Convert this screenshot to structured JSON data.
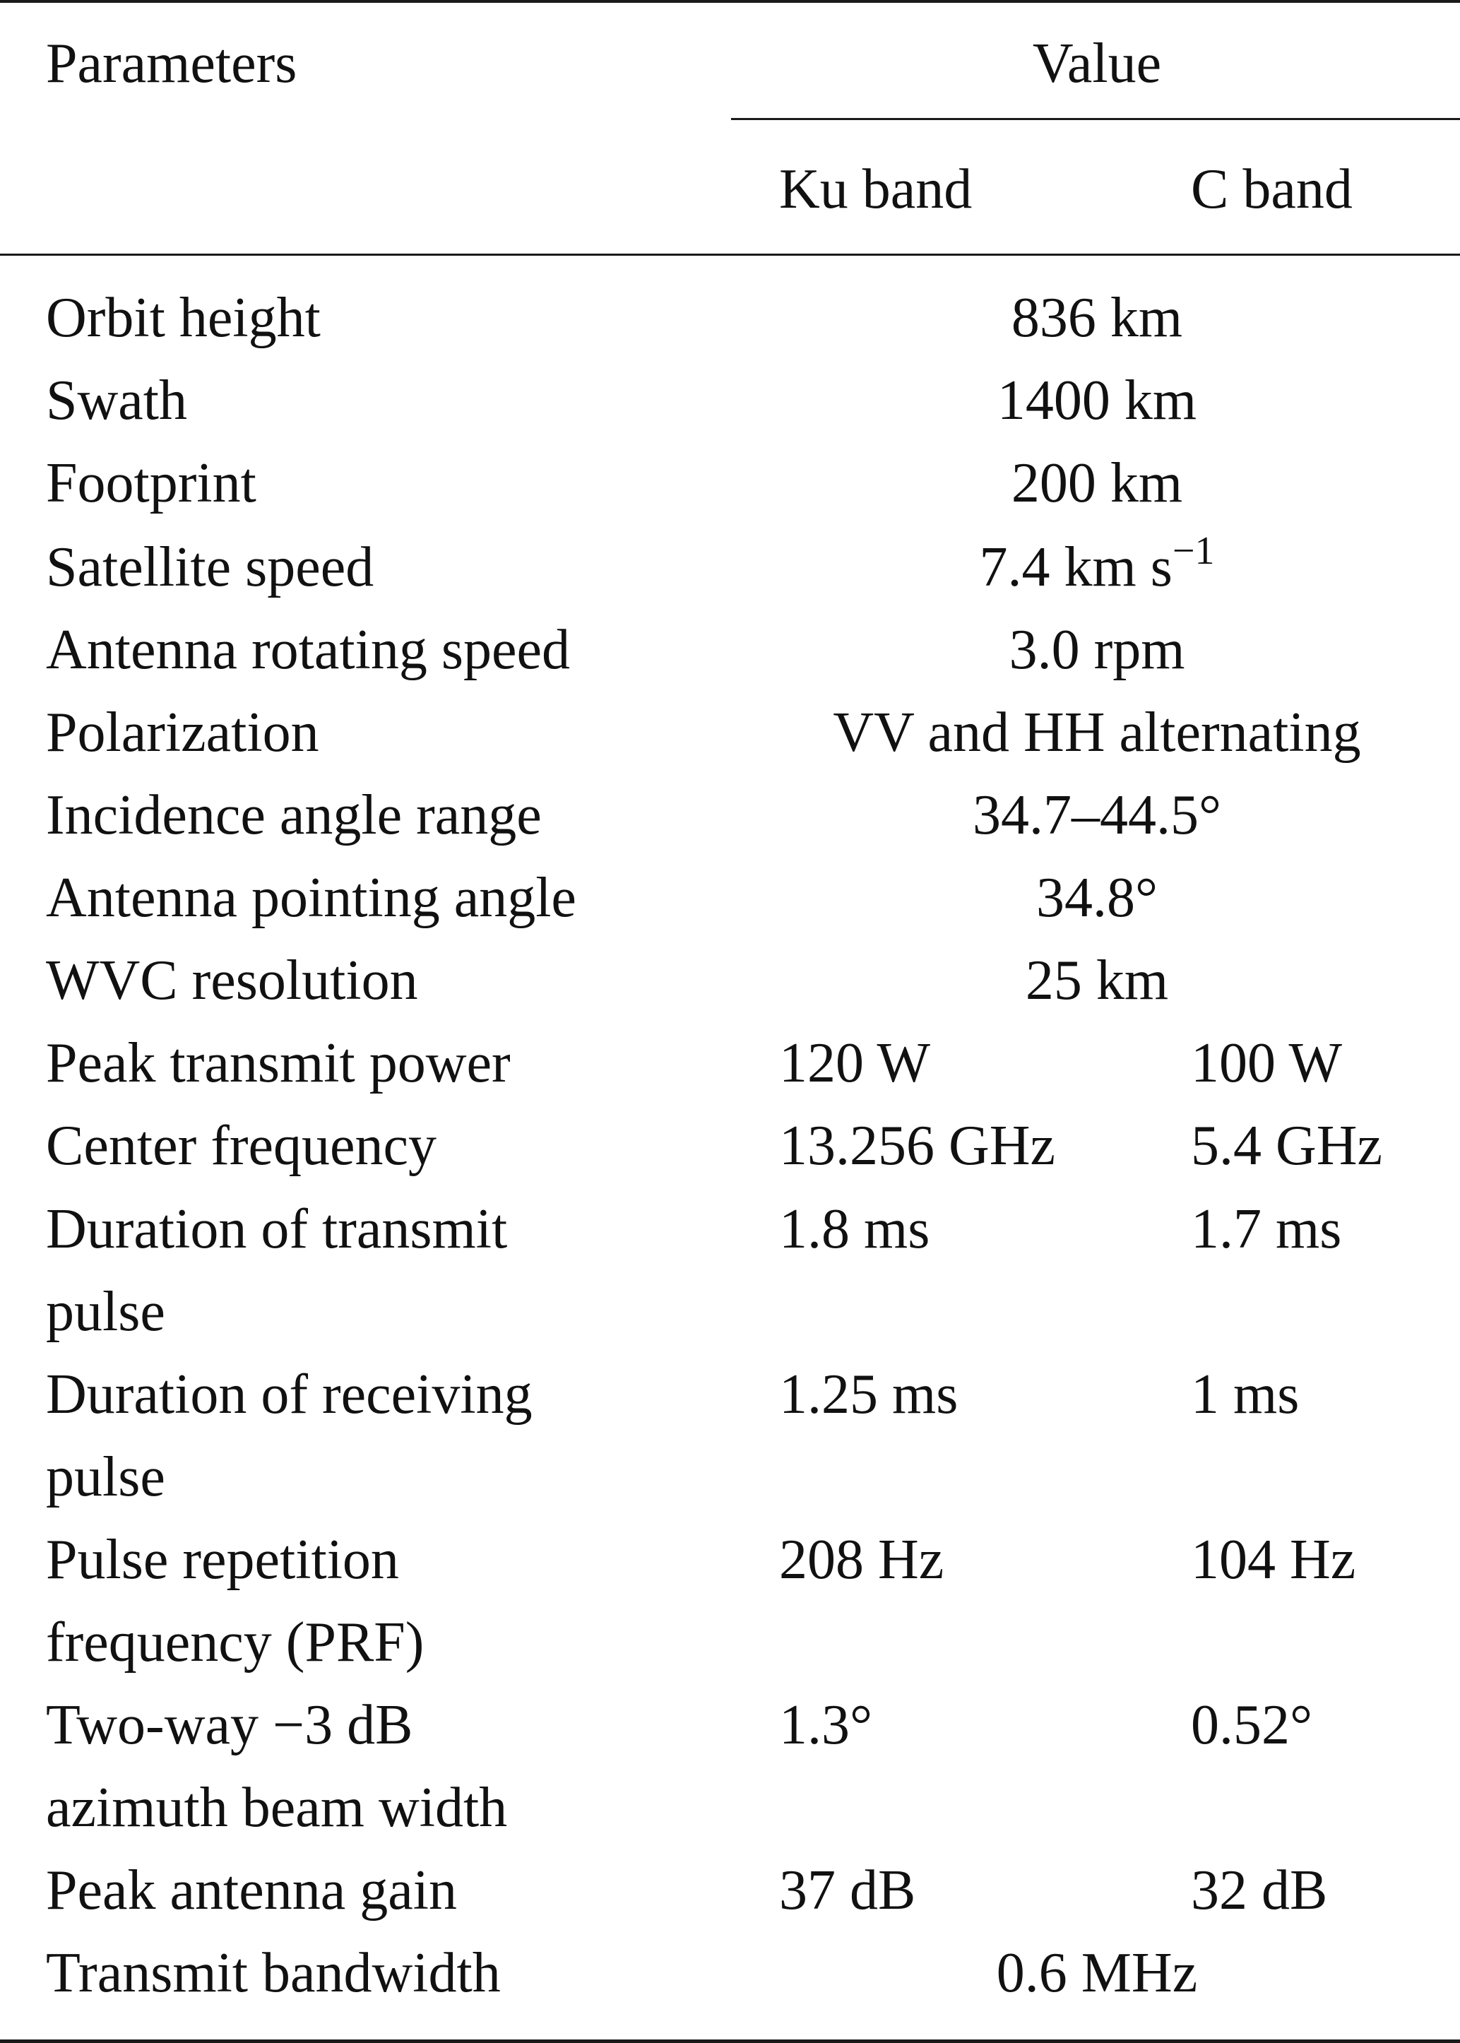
{
  "table": {
    "header": {
      "parameters": "Parameters",
      "value": "Value",
      "ku_band": "Ku band",
      "c_band": "C band"
    },
    "rows": [
      {
        "parameter": "Orbit height",
        "shared": "836 km"
      },
      {
        "parameter": "Swath",
        "shared": "1400 km"
      },
      {
        "parameter": "Footprint",
        "shared": "200 km"
      },
      {
        "parameter": "Satellite speed",
        "shared": "7.4 km s",
        "shared_sup": "−1"
      },
      {
        "parameter": "Antenna rotating speed",
        "shared": "3.0 rpm"
      },
      {
        "parameter": "Polarization",
        "shared": "VV and HH alternating"
      },
      {
        "parameter": "Incidence angle range",
        "shared": "34.7–44.5°"
      },
      {
        "parameter": "Antenna pointing angle",
        "shared": "34.8°"
      },
      {
        "parameter": "WVC resolution",
        "shared": "25 km"
      },
      {
        "parameter": "Peak transmit power",
        "ku": "120 W",
        "c": "100 W"
      },
      {
        "parameter": "Center frequency",
        "ku": "13.256 GHz",
        "c": "5.4 GHz"
      },
      {
        "parameter_lines": [
          "Duration of transmit",
          "pulse"
        ],
        "ku": "1.8 ms",
        "c": "1.7 ms"
      },
      {
        "parameter_lines": [
          "Duration of receiving",
          "pulse"
        ],
        "ku": "1.25 ms",
        "c": "1 ms"
      },
      {
        "parameter_lines": [
          "Pulse repetition",
          "frequency (PRF)"
        ],
        "ku": "208 Hz",
        "c": "104 Hz"
      },
      {
        "parameter_lines": [
          "Two-way −3 dB",
          "azimuth beam width"
        ],
        "ku": "1.3°",
        "c": "0.52°"
      },
      {
        "parameter": "Peak antenna gain",
        "ku": "37 dB",
        "c": "32 dB"
      },
      {
        "parameter": "Transmit bandwidth",
        "shared": "0.6 MHz"
      }
    ]
  }
}
